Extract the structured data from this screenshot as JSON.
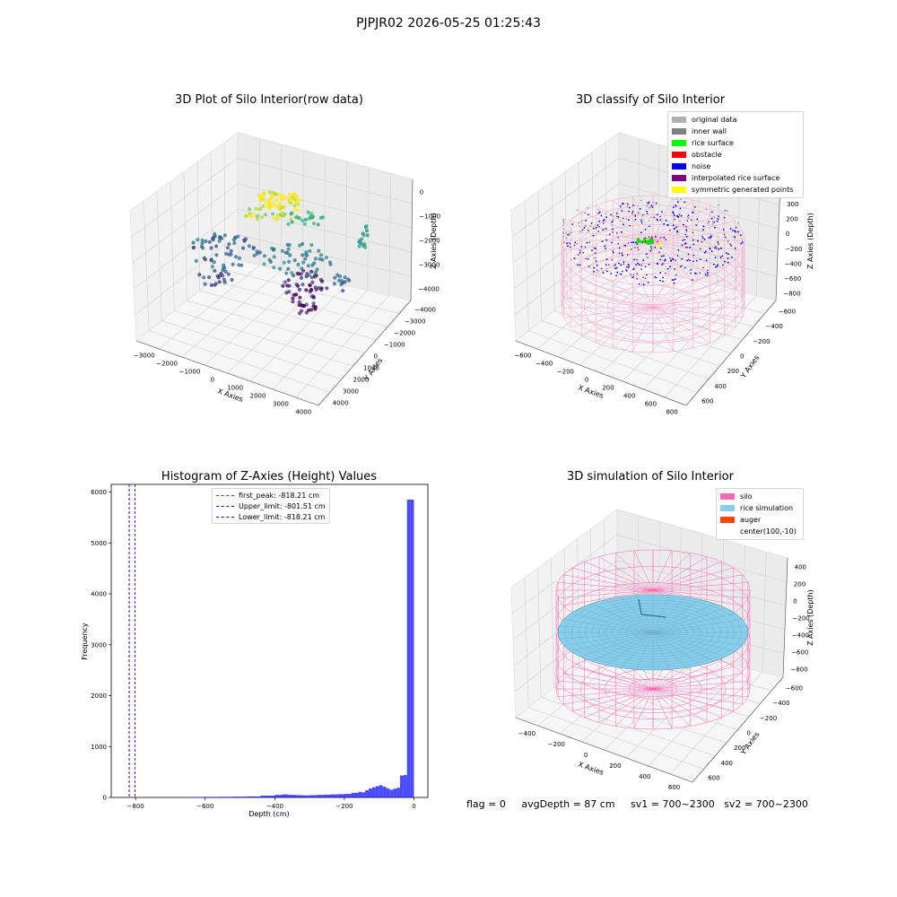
{
  "suptitle": "PJPJR02 2026-05-25 01:25:43",
  "panels": {
    "raw": {
      "title": "3D Plot of Silo Interior(row data)",
      "xlabel": "X Axies",
      "ylabel": "Y Axies",
      "zlabel": "Z Axies (Depth)",
      "xticks": [
        "−3000",
        "−2000",
        "−1000",
        "0",
        "1000",
        "2000",
        "3000",
        "4000"
      ],
      "yticks": [
        "4000",
        "3000",
        "2000",
        "1000",
        "0",
        "−1000",
        "−2000",
        "−3000",
        "−4000"
      ],
      "zticks": [
        "0",
        "−1000",
        "−2000",
        "−3000",
        "−4000"
      ]
    },
    "classify": {
      "title": "3D classify of Silo Interior",
      "xlabel": "X Axies",
      "ylabel": "Y Axies",
      "zlabel": "Z Axies (Depth)",
      "xticks": [
        "−600",
        "−400",
        "−200",
        "0",
        "200",
        "400",
        "600",
        "800"
      ],
      "yticks": [
        "600",
        "400",
        "200",
        "0",
        "−200",
        "−400",
        "−600"
      ],
      "zticks": [
        "400",
        "300",
        "200",
        "0",
        "−200",
        "−400",
        "−600",
        "−800"
      ],
      "legend": [
        {
          "label": "original data",
          "color": "#b0b0b0"
        },
        {
          "label": "inner wall",
          "color": "#808080"
        },
        {
          "label": "rice surface",
          "color": "#00ff00"
        },
        {
          "label": "obstacle",
          "color": "#ff0000"
        },
        {
          "label": "noise",
          "color": "#0000ff"
        },
        {
          "label": "interpolated rice surface",
          "color": "#800080"
        },
        {
          "label": "symmetric generated points",
          "color": "#ffff00"
        }
      ]
    },
    "histogram": {
      "title": "Histogram of Z-Axies (Height) Values",
      "xlabel": "Depth (cm)",
      "ylabel": "Frequency",
      "legend": [
        {
          "label": "first_peak: -818.21 cm",
          "color": "#ff0000"
        },
        {
          "label": "Upper_limit: -801.51 cm",
          "color": "#0000cc"
        },
        {
          "label": "Lower_limit: -818.21 cm",
          "color": "#0000cc"
        }
      ]
    },
    "simulation": {
      "title": "3D simulation of Silo Interior",
      "xlabel": "X Axies",
      "ylabel": "Y Axies",
      "zlabel": "Z Axies (Depth)",
      "xticks": [
        "−400",
        "−200",
        "0",
        "200",
        "400",
        "600"
      ],
      "yticks": [
        "600",
        "400",
        "200",
        "0",
        "−200",
        "−400",
        "−600"
      ],
      "zticks": [
        "400",
        "200",
        "0",
        "−200",
        "−400",
        "−600",
        "−800"
      ],
      "legend": [
        {
          "label": "silo",
          "color": "#ff69b4"
        },
        {
          "label": "rice simulation",
          "color": "#87ceeb"
        },
        {
          "label": "auger",
          "color": "#ff4500"
        },
        {
          "label": "center(100,-10)",
          "color": ""
        }
      ]
    }
  },
  "footer": "flag = 0     avgDepth = 87 cm     sv1 = 700~2300   sv2 = 700~2300",
  "chart_data": [
    {
      "type": "histogram",
      "title": "Histogram of Z-Axies (Height) Values",
      "xlabel": "Depth (cm)",
      "ylabel": "Frequency",
      "xlim": [
        -870,
        40
      ],
      "ylim": [
        0,
        6150
      ],
      "xticks": [
        -800,
        -600,
        -400,
        -200,
        0
      ],
      "yticks": [
        0,
        1000,
        2000,
        3000,
        4000,
        5000,
        6000
      ],
      "bar_color": "#0000ff",
      "bins": [
        [
          -640,
          -600,
          8
        ],
        [
          -600,
          -560,
          10
        ],
        [
          -560,
          -520,
          12
        ],
        [
          -520,
          -480,
          15
        ],
        [
          -480,
          -440,
          20
        ],
        [
          -440,
          -400,
          35
        ],
        [
          -400,
          -380,
          50
        ],
        [
          -380,
          -360,
          60
        ],
        [
          -360,
          -340,
          50
        ],
        [
          -340,
          -320,
          45
        ],
        [
          -320,
          -300,
          40
        ],
        [
          -300,
          -280,
          45
        ],
        [
          -280,
          -260,
          50
        ],
        [
          -260,
          -240,
          55
        ],
        [
          -240,
          -220,
          60
        ],
        [
          -220,
          -200,
          65
        ],
        [
          -200,
          -180,
          70
        ],
        [
          -180,
          -160,
          90
        ],
        [
          -160,
          -150,
          110
        ],
        [
          -150,
          -140,
          100
        ],
        [
          -140,
          -130,
          140
        ],
        [
          -130,
          -120,
          175
        ],
        [
          -120,
          -110,
          200
        ],
        [
          -110,
          -100,
          220
        ],
        [
          -100,
          -90,
          240
        ],
        [
          -90,
          -80,
          210
        ],
        [
          -80,
          -70,
          180
        ],
        [
          -70,
          -60,
          150
        ],
        [
          -60,
          -50,
          170
        ],
        [
          -50,
          -40,
          190
        ],
        [
          -40,
          -30,
          430
        ],
        [
          -30,
          -20,
          440
        ],
        [
          -20,
          -10,
          5850
        ],
        [
          -10,
          0,
          5850
        ]
      ],
      "vlines": [
        {
          "label": "first_peak: -818.21 cm",
          "x": -818.21,
          "color": "#ff0000"
        },
        {
          "label": "Upper_limit: -801.51 cm",
          "x": -801.51,
          "color": "#0000cc"
        },
        {
          "label": "Lower_limit: -818.21 cm",
          "x": -818.21,
          "color": "#0000cc"
        }
      ]
    }
  ]
}
